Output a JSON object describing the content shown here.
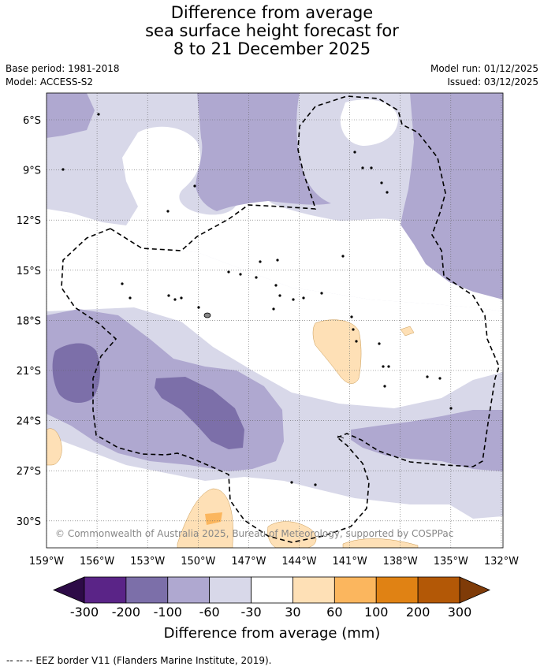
{
  "title": {
    "line1": "Difference from average",
    "line2": "sea surface height forecast for",
    "line3": "8 to 21 December 2025"
  },
  "meta": {
    "base_period": "Base period: 1981-2018",
    "model": "Model: ACCESS-S2",
    "model_run": "Model run: 01/12/2025",
    "issued": "Issued: 03/12/2025"
  },
  "map": {
    "lat_labels": [
      "6°S",
      "9°S",
      "12°S",
      "15°S",
      "18°S",
      "21°S",
      "24°S",
      "27°S",
      "30°S"
    ],
    "lon_labels": [
      "159°W",
      "156°W",
      "153°W",
      "150°W",
      "147°W",
      "144°W",
      "141°W",
      "138°W",
      "135°W",
      "132°W"
    ],
    "copyright": "© Commonwealth of Australia 2025, Bureau of Meteorology, supported by COSPPac"
  },
  "colorbar": {
    "title": "Difference from average (mm)",
    "tick_labels": [
      "-300",
      "-200",
      "-100",
      "-60",
      "-30",
      "30",
      "60",
      "100",
      "200",
      "300"
    ],
    "colors": {
      "below_min": "#2d0b47",
      "c1": "#5a2487",
      "c2": "#7c6fa9",
      "c3": "#afa8d0",
      "c4": "#d8d8e9",
      "neutral": "#ffffff",
      "p1": "#fee0b6",
      "p2": "#fbb65e",
      "p3": "#e08214",
      "p4": "#b35806",
      "above_max": "#7f3b08"
    }
  },
  "footnote": "--  --  -- EEZ border V11 (Flanders Marine Institute, 2019)."
}
